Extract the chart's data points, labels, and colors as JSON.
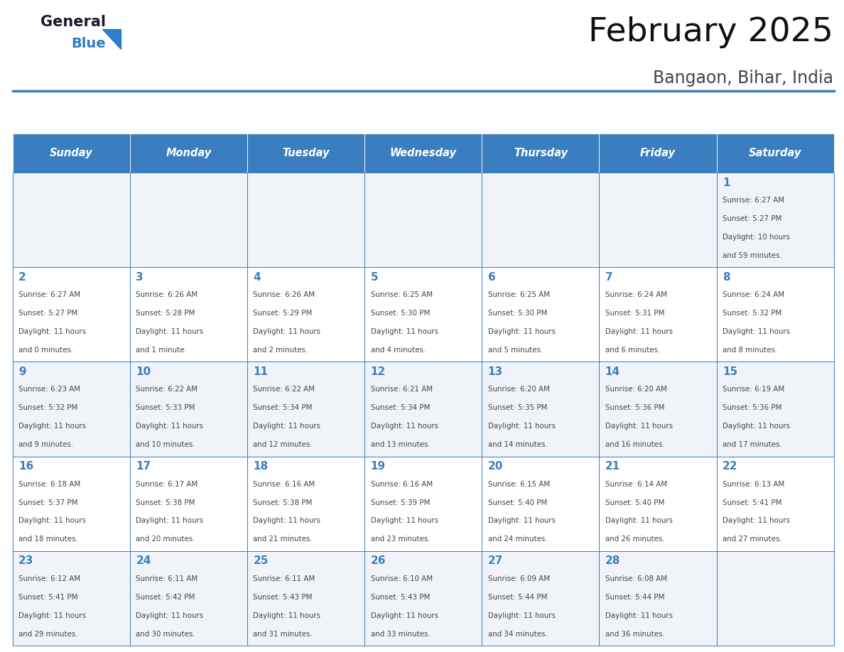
{
  "title": "February 2025",
  "subtitle": "Bangaon, Bihar, India",
  "days_of_week": [
    "Sunday",
    "Monday",
    "Tuesday",
    "Wednesday",
    "Thursday",
    "Friday",
    "Saturday"
  ],
  "header_bg": "#3a7ebf",
  "header_text": "#ffffff",
  "cell_bg_light": "#f0f4f8",
  "cell_bg_white": "#ffffff",
  "border_color": "#3a7ebf",
  "day_num_color": "#3a7ebf",
  "text_color": "#444444",
  "logo_general_color": "#1a1a2e",
  "logo_blue_color": "#2e7dc5",
  "calendar_data": [
    [
      null,
      null,
      null,
      null,
      null,
      null,
      1
    ],
    [
      2,
      3,
      4,
      5,
      6,
      7,
      8
    ],
    [
      9,
      10,
      11,
      12,
      13,
      14,
      15
    ],
    [
      16,
      17,
      18,
      19,
      20,
      21,
      22
    ],
    [
      23,
      24,
      25,
      26,
      27,
      28,
      null
    ]
  ],
  "sunrise_data": {
    "1": "6:27 AM",
    "2": "6:27 AM",
    "3": "6:26 AM",
    "4": "6:26 AM",
    "5": "6:25 AM",
    "6": "6:25 AM",
    "7": "6:24 AM",
    "8": "6:24 AM",
    "9": "6:23 AM",
    "10": "6:22 AM",
    "11": "6:22 AM",
    "12": "6:21 AM",
    "13": "6:20 AM",
    "14": "6:20 AM",
    "15": "6:19 AM",
    "16": "6:18 AM",
    "17": "6:17 AM",
    "18": "6:16 AM",
    "19": "6:16 AM",
    "20": "6:15 AM",
    "21": "6:14 AM",
    "22": "6:13 AM",
    "23": "6:12 AM",
    "24": "6:11 AM",
    "25": "6:11 AM",
    "26": "6:10 AM",
    "27": "6:09 AM",
    "28": "6:08 AM"
  },
  "sunset_data": {
    "1": "5:27 PM",
    "2": "5:27 PM",
    "3": "5:28 PM",
    "4": "5:29 PM",
    "5": "5:30 PM",
    "6": "5:30 PM",
    "7": "5:31 PM",
    "8": "5:32 PM",
    "9": "5:32 PM",
    "10": "5:33 PM",
    "11": "5:34 PM",
    "12": "5:34 PM",
    "13": "5:35 PM",
    "14": "5:36 PM",
    "15": "5:36 PM",
    "16": "5:37 PM",
    "17": "5:38 PM",
    "18": "5:38 PM",
    "19": "5:39 PM",
    "20": "5:40 PM",
    "21": "5:40 PM",
    "22": "5:41 PM",
    "23": "5:41 PM",
    "24": "5:42 PM",
    "25": "5:43 PM",
    "26": "5:43 PM",
    "27": "5:44 PM",
    "28": "5:44 PM"
  },
  "daylight_data": {
    "1": [
      "10 hours",
      "and 59 minutes."
    ],
    "2": [
      "11 hours",
      "and 0 minutes."
    ],
    "3": [
      "11 hours",
      "and 1 minute."
    ],
    "4": [
      "11 hours",
      "and 2 minutes."
    ],
    "5": [
      "11 hours",
      "and 4 minutes."
    ],
    "6": [
      "11 hours",
      "and 5 minutes."
    ],
    "7": [
      "11 hours",
      "and 6 minutes."
    ],
    "8": [
      "11 hours",
      "and 8 minutes."
    ],
    "9": [
      "11 hours",
      "and 9 minutes."
    ],
    "10": [
      "11 hours",
      "and 10 minutes."
    ],
    "11": [
      "11 hours",
      "and 12 minutes."
    ],
    "12": [
      "11 hours",
      "and 13 minutes."
    ],
    "13": [
      "11 hours",
      "and 14 minutes."
    ],
    "14": [
      "11 hours",
      "and 16 minutes."
    ],
    "15": [
      "11 hours",
      "and 17 minutes."
    ],
    "16": [
      "11 hours",
      "and 18 minutes."
    ],
    "17": [
      "11 hours",
      "and 20 minutes."
    ],
    "18": [
      "11 hours",
      "and 21 minutes."
    ],
    "19": [
      "11 hours",
      "and 23 minutes."
    ],
    "20": [
      "11 hours",
      "and 24 minutes."
    ],
    "21": [
      "11 hours",
      "and 26 minutes."
    ],
    "22": [
      "11 hours",
      "and 27 minutes."
    ],
    "23": [
      "11 hours",
      "and 29 minutes."
    ],
    "24": [
      "11 hours",
      "and 30 minutes."
    ],
    "25": [
      "11 hours",
      "and 31 minutes."
    ],
    "26": [
      "11 hours",
      "and 33 minutes."
    ],
    "27": [
      "11 hours",
      "and 34 minutes."
    ],
    "28": [
      "11 hours",
      "and 36 minutes."
    ]
  }
}
